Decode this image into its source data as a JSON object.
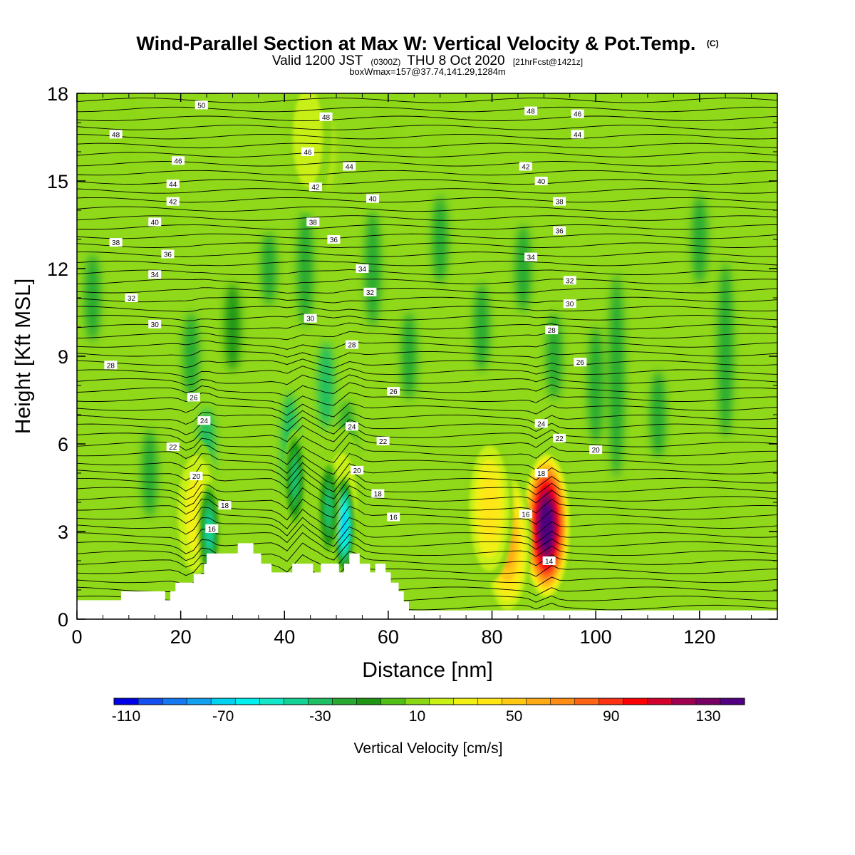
{
  "title": {
    "main": "Wind-Parallel Section at Max W: Vertical Velocity & Pot.Temp.",
    "copyright": "(C)",
    "valid_prefix": "Valid 1200 JST",
    "utc": "(0300Z)",
    "date": "THU 8 Oct 2020",
    "forecast": "[21hrFcst@1421z]",
    "boxinfo": "boxWmax=157@37.74,141.29,1284m"
  },
  "colors": {
    "background_field": "#8fd81a",
    "terrain": "#ffffff",
    "contour": "#000000"
  },
  "chart_data": {
    "type": "heatmap",
    "xlabel": "Distance [nm]",
    "ylabel": "Height [Kft MSL]",
    "xlim": [
      0,
      135
    ],
    "ylim": [
      0,
      18
    ],
    "x_ticks": [
      0,
      20,
      40,
      60,
      80,
      100,
      120
    ],
    "y_ticks": [
      0,
      3,
      6,
      9,
      12,
      15,
      18
    ],
    "colorbar": {
      "title": "Vertical Velocity [cm/s]",
      "min": -110,
      "max": 140,
      "step": 10,
      "tick_values": [
        -110,
        -70,
        -30,
        10,
        50,
        90,
        130
      ],
      "colors": [
        "#0000e6",
        "#1450ef",
        "#1478f0",
        "#14a0f0",
        "#00d2f0",
        "#00f0f0",
        "#14e6c8",
        "#14d296",
        "#1ebe64",
        "#28aa32",
        "#1e9614",
        "#50be14",
        "#8cd714",
        "#c8f014",
        "#f0f014",
        "#ffe614",
        "#ffc814",
        "#ffaa14",
        "#ff8c14",
        "#ff6414",
        "#ff3214",
        "#ff0000",
        "#d2002d",
        "#a00050",
        "#780064",
        "#500080"
      ]
    },
    "terrain_profile": [
      [
        0,
        0.65
      ],
      [
        8.5,
        0.65
      ],
      [
        8.5,
        0.95
      ],
      [
        17,
        0.95
      ],
      [
        17,
        0.65
      ],
      [
        18,
        0.65
      ],
      [
        18,
        0.95
      ],
      [
        19,
        0.95
      ],
      [
        19,
        1.25
      ],
      [
        22.5,
        1.25
      ],
      [
        22.5,
        1.55
      ],
      [
        24.5,
        1.55
      ],
      [
        24.5,
        1.9
      ],
      [
        25,
        1.9
      ],
      [
        25,
        2.25
      ],
      [
        31,
        2.25
      ],
      [
        31,
        2.6
      ],
      [
        34,
        2.6
      ],
      [
        34,
        2.25
      ],
      [
        35.5,
        2.25
      ],
      [
        35.5,
        1.9
      ],
      [
        37.5,
        1.9
      ],
      [
        37.5,
        1.6
      ],
      [
        41.5,
        1.6
      ],
      [
        41.5,
        1.9
      ],
      [
        45.5,
        1.9
      ],
      [
        45.5,
        1.6
      ],
      [
        47,
        1.6
      ],
      [
        47,
        1.9
      ],
      [
        50.5,
        1.9
      ],
      [
        50.5,
        1.6
      ],
      [
        51.5,
        1.6
      ],
      [
        51.5,
        1.9
      ],
      [
        52.5,
        1.9
      ],
      [
        52.5,
        2.25
      ],
      [
        54.5,
        2.25
      ],
      [
        54.5,
        1.9
      ],
      [
        56.5,
        1.9
      ],
      [
        56.5,
        1.6
      ],
      [
        57.5,
        1.6
      ],
      [
        57.5,
        1.9
      ],
      [
        59.5,
        1.9
      ],
      [
        59.5,
        1.6
      ],
      [
        60.5,
        1.6
      ],
      [
        60.5,
        1.25
      ],
      [
        62,
        1.25
      ],
      [
        62,
        0.95
      ],
      [
        63,
        0.95
      ],
      [
        63,
        0.6
      ],
      [
        64,
        0.6
      ],
      [
        64,
        0.3
      ],
      [
        135,
        0.3
      ]
    ],
    "updraft_cores": [
      {
        "x": 90.5,
        "z": 3.2,
        "w": 150
      },
      {
        "x": 83,
        "z": 2.6,
        "w": 60
      },
      {
        "x": 79.5,
        "z": 3.8,
        "w": 45
      },
      {
        "x": 23,
        "z": 3.6,
        "w": 35
      },
      {
        "x": 44.5,
        "z": 16.5,
        "w": 25
      },
      {
        "x": 51,
        "z": 4.0,
        "w": 25
      }
    ],
    "downdraft_cores": [
      {
        "x": 51.5,
        "z": 3.2,
        "w": -75
      },
      {
        "x": 25.5,
        "z": 3.0,
        "w": -40
      },
      {
        "x": 42,
        "z": 4.8,
        "w": -30
      },
      {
        "x": 48.5,
        "z": 3.8,
        "w": -30
      }
    ],
    "potential_temperature_labels": [
      {
        "x": 24,
        "z": 17.6,
        "text": "50"
      },
      {
        "x": 7.5,
        "z": 16.6,
        "text": "48"
      },
      {
        "x": 48,
        "z": 17.2,
        "text": "48"
      },
      {
        "x": 87.5,
        "z": 17.4,
        "text": "48"
      },
      {
        "x": 96.5,
        "z": 17.3,
        "text": "46"
      },
      {
        "x": 19.5,
        "z": 15.7,
        "text": "46"
      },
      {
        "x": 44.5,
        "z": 16.0,
        "text": "46"
      },
      {
        "x": 96.5,
        "z": 16.6,
        "text": "44"
      },
      {
        "x": 18.5,
        "z": 14.9,
        "text": "44"
      },
      {
        "x": 52.5,
        "z": 15.5,
        "text": "44"
      },
      {
        "x": 86.5,
        "z": 15.5,
        "text": "42"
      },
      {
        "x": 18.5,
        "z": 14.3,
        "text": "42"
      },
      {
        "x": 46,
        "z": 14.8,
        "text": "42"
      },
      {
        "x": 89.5,
        "z": 15.0,
        "text": "40"
      },
      {
        "x": 15,
        "z": 13.6,
        "text": "40"
      },
      {
        "x": 57,
        "z": 14.4,
        "text": "40"
      },
      {
        "x": 93,
        "z": 14.3,
        "text": "38"
      },
      {
        "x": 7.5,
        "z": 12.9,
        "text": "38"
      },
      {
        "x": 45.5,
        "z": 13.6,
        "text": "38"
      },
      {
        "x": 93,
        "z": 13.3,
        "text": "36"
      },
      {
        "x": 17.5,
        "z": 12.5,
        "text": "36"
      },
      {
        "x": 49.5,
        "z": 13.0,
        "text": "36"
      },
      {
        "x": 87.5,
        "z": 12.4,
        "text": "34"
      },
      {
        "x": 15,
        "z": 11.8,
        "text": "34"
      },
      {
        "x": 55,
        "z": 12.0,
        "text": "34"
      },
      {
        "x": 95,
        "z": 11.6,
        "text": "32"
      },
      {
        "x": 10.5,
        "z": 11.0,
        "text": "32"
      },
      {
        "x": 56.5,
        "z": 11.2,
        "text": "32"
      },
      {
        "x": 95,
        "z": 10.8,
        "text": "30"
      },
      {
        "x": 15,
        "z": 10.1,
        "text": "30"
      },
      {
        "x": 45,
        "z": 10.3,
        "text": "30"
      },
      {
        "x": 91.5,
        "z": 9.9,
        "text": "28"
      },
      {
        "x": 6.5,
        "z": 8.7,
        "text": "28"
      },
      {
        "x": 53,
        "z": 9.4,
        "text": "28"
      },
      {
        "x": 97,
        "z": 8.8,
        "text": "26"
      },
      {
        "x": 22.5,
        "z": 7.6,
        "text": "26"
      },
      {
        "x": 61,
        "z": 7.8,
        "text": "26"
      },
      {
        "x": 89.5,
        "z": 6.7,
        "text": "24"
      },
      {
        "x": 24.5,
        "z": 6.8,
        "text": "24"
      },
      {
        "x": 53,
        "z": 6.6,
        "text": "24"
      },
      {
        "x": 93,
        "z": 6.2,
        "text": "22"
      },
      {
        "x": 18.5,
        "z": 5.9,
        "text": "22"
      },
      {
        "x": 59,
        "z": 6.1,
        "text": "22"
      },
      {
        "x": 100,
        "z": 5.8,
        "text": "20"
      },
      {
        "x": 23,
        "z": 4.9,
        "text": "20"
      },
      {
        "x": 54,
        "z": 5.1,
        "text": "20"
      },
      {
        "x": 89.5,
        "z": 5.0,
        "text": "18"
      },
      {
        "x": 28.5,
        "z": 3.9,
        "text": "18"
      },
      {
        "x": 58,
        "z": 4.3,
        "text": "18"
      },
      {
        "x": 86.5,
        "z": 3.6,
        "text": "16"
      },
      {
        "x": 26,
        "z": 3.1,
        "text": "16"
      },
      {
        "x": 61,
        "z": 3.5,
        "text": "16"
      },
      {
        "x": 91,
        "z": 2.0,
        "text": "14"
      }
    ]
  }
}
